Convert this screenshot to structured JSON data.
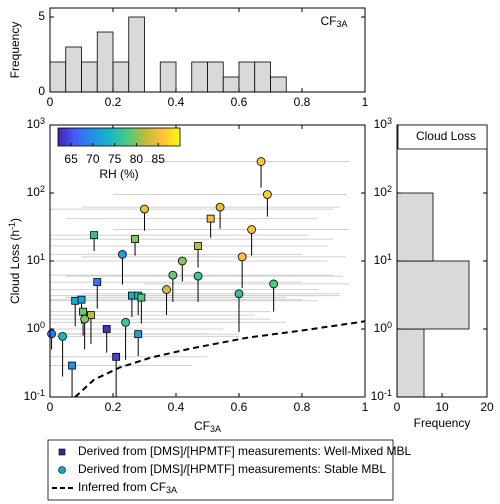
{
  "chart_data": [
    {
      "type": "histogram",
      "annotation": {
        "text": "CF",
        "sub": "3A"
      },
      "ylabel": "Frequency",
      "bins": [
        0,
        0.05,
        0.1,
        0.15,
        0.2,
        0.25,
        0.3,
        0.35,
        0.4,
        0.45,
        0.5,
        0.55,
        0.6,
        0.65,
        0.7,
        0.75
      ],
      "counts": [
        2,
        3,
        2,
        4,
        2,
        5,
        0,
        2,
        0,
        2,
        2,
        1,
        2,
        2,
        1
      ],
      "color": "#d9d9d9",
      "xlim": [
        0,
        1
      ],
      "xticks": [
        0,
        0.2,
        0.4,
        0.6,
        0.8,
        1
      ],
      "ylim": [
        0,
        5.6
      ],
      "yticks": [
        0,
        5
      ]
    },
    {
      "type": "scatter",
      "xlabel": {
        "text": "CF",
        "sub": "3A"
      },
      "ylabel": {
        "text": "Cloud Loss (h",
        "sup": "-1",
        "tail": ")"
      },
      "xlim": [
        0,
        1
      ],
      "xticks": [
        0,
        0.2,
        0.4,
        0.6,
        0.8,
        1
      ],
      "ylim": [
        0.1,
        1000
      ],
      "log_y": true,
      "yticks": [
        {
          "value": 0.1,
          "label": "10",
          "exponent": "-1"
        },
        {
          "value": 1,
          "label": "10",
          "exponent": "0"
        },
        {
          "value": 10,
          "label": "10",
          "exponent": "1"
        },
        {
          "value": 100,
          "label": "10",
          "exponent": "2"
        },
        {
          "value": 1000,
          "label": "10",
          "exponent": "3"
        }
      ],
      "colorbar": {
        "label": "RH (%)",
        "lim": [
          62,
          90
        ],
        "ticks": [
          65,
          70,
          75,
          80,
          85
        ],
        "colormap": [
          "#3e26a8",
          "#465dfd",
          "#2091e6",
          "#14b7c4",
          "#4bcb82",
          "#bebd3a",
          "#fec13a",
          "#f9fb0e"
        ]
      },
      "errorbar_color": "#d0d0d0",
      "series": [
        {
          "name": "Derived from [DMS]/[HPMTF] measurements: Well-Mixed MBL",
          "marker": "square",
          "legend_color": "#2a2f8f",
          "x": [
            0.14,
            0.27,
            0.51,
            0.47,
            0.15,
            0.26,
            0.28,
            0.29,
            0.08,
            0.1,
            0.105,
            0.13,
            0.28,
            0.18,
            0.21,
            0.07
          ],
          "values": [
            24,
            21,
            42,
            16.6,
            4.9,
            3.1,
            3.1,
            2.9,
            2.6,
            2.7,
            1.8,
            1.6,
            0.84,
            1.0,
            0.39,
            0.29
          ],
          "rh": [
            76,
            80,
            85,
            82,
            68,
            73,
            74,
            78,
            73,
            72,
            79,
            82,
            71,
            63,
            64,
            70
          ],
          "low": [
            14,
            12,
            22,
            8,
            2,
            1.5,
            1.6,
            1.2,
            1.1,
            1.2,
            0.8,
            0.6,
            0.4,
            0.45,
            0.1,
            0.1
          ],
          "x_low": [
            0,
            0,
            0.05,
            0,
            0,
            0,
            0,
            0.05,
            0,
            0,
            0,
            0,
            0,
            0,
            0,
            0
          ],
          "x_high": [
            0.82,
            0.9,
            0.85,
            0.88,
            0.8,
            0.86,
            0.92,
            0.75,
            0.85,
            0.8,
            0.7,
            0.65,
            0.6,
            0.55,
            0.5,
            0.45
          ]
        },
        {
          "name": "Derived from [DMS]/[HPMTF] measurements: Stable MBL",
          "marker": "circle",
          "legend_color": "#1aa3c4",
          "x": [
            0.67,
            0.69,
            0.3,
            0.54,
            0.64,
            0.61,
            0.42,
            0.23,
            0.39,
            0.47,
            0.37,
            0.71,
            0.6,
            0.11,
            0.24,
            0.005,
            0.04
          ],
          "values": [
            290,
            95,
            58,
            62,
            29,
            11.5,
            10,
            12.5,
            6.2,
            6,
            3.8,
            4.6,
            3.3,
            1.4,
            1.25,
            0.85,
            0.78
          ],
          "rh": [
            86,
            87,
            85,
            84,
            86,
            86,
            80,
            71,
            79,
            77,
            83,
            78,
            76,
            80,
            77,
            68,
            74
          ],
          "low": [
            120,
            45,
            28,
            30,
            12,
            4,
            5,
            4.5,
            2.5,
            2.5,
            1.6,
            1.8,
            0.9,
            0.5,
            0.35,
            0.5,
            0.2
          ],
          "x_low": [
            0.3,
            0.2,
            0,
            0.1,
            0.2,
            0.1,
            0,
            0,
            0,
            0.05,
            0,
            0.3,
            0.1,
            0,
            0,
            0,
            0
          ],
          "x_high": [
            0.95,
            0.94,
            0.9,
            0.92,
            0.95,
            0.94,
            0.88,
            0.8,
            0.9,
            0.93,
            0.85,
            0.95,
            0.92,
            0.7,
            0.75,
            0.5,
            0.6
          ]
        },
        {
          "name": "Inferred from CF",
          "name_sub": "3A",
          "line": "dashed",
          "color": "#000000",
          "x": [
            0.08,
            0.14,
            0.22,
            0.32,
            0.45,
            0.63,
            0.8,
            1.0
          ],
          "values": [
            0.1,
            0.18,
            0.27,
            0.38,
            0.52,
            0.75,
            0.95,
            1.3
          ]
        }
      ]
    },
    {
      "type": "histogram_horizontal",
      "title": "Cloud Loss",
      "xlabel": "Frequency",
      "bins": [
        0.1,
        1,
        10,
        100,
        1000
      ],
      "counts": [
        6,
        16,
        8,
        0
      ],
      "color": "#d9d9d9",
      "xlim": [
        0,
        20
      ],
      "xticks": [
        0,
        10,
        20
      ],
      "ylim": [
        0.1,
        1000
      ],
      "log_y": true,
      "yticks": [
        {
          "value": 0.1,
          "label": "10",
          "exponent": "-1"
        },
        {
          "value": 1,
          "label": "10",
          "exponent": "0"
        },
        {
          "value": 10,
          "label": "10",
          "exponent": "1"
        },
        {
          "value": 100,
          "label": "10",
          "exponent": "2"
        },
        {
          "value": 1000,
          "label": "10",
          "exponent": "3"
        }
      ]
    }
  ]
}
